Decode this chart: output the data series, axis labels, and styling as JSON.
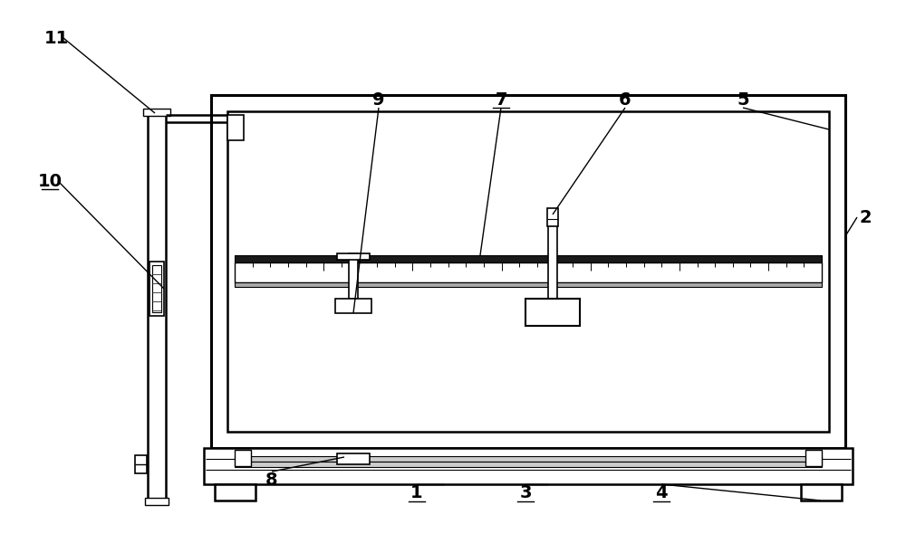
{
  "bg_color": "#ffffff",
  "line_color": "#000000",
  "lw_main": 1.8,
  "lw_thick": 2.2,
  "font_size": 14
}
